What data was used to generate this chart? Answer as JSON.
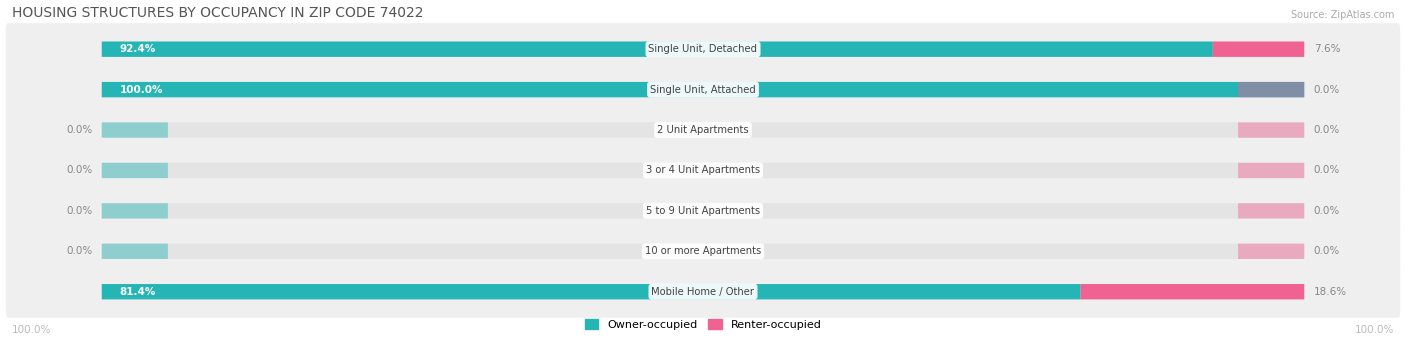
{
  "title": "HOUSING STRUCTURES BY OCCUPANCY IN ZIP CODE 74022",
  "source": "Source: ZipAtlas.com",
  "categories": [
    "Single Unit, Detached",
    "Single Unit, Attached",
    "2 Unit Apartments",
    "3 or 4 Unit Apartments",
    "5 to 9 Unit Apartments",
    "10 or more Apartments",
    "Mobile Home / Other"
  ],
  "owner_pct": [
    92.4,
    100.0,
    0.0,
    0.0,
    0.0,
    0.0,
    81.4
  ],
  "renter_pct": [
    7.6,
    0.0,
    0.0,
    0.0,
    0.0,
    0.0,
    18.6
  ],
  "owner_label": [
    "92.4%",
    "100.0%",
    "0.0%",
    "0.0%",
    "0.0%",
    "0.0%",
    "81.4%"
  ],
  "renter_label": [
    "7.6%",
    "0.0%",
    "0.0%",
    "0.0%",
    "0.0%",
    "0.0%",
    "18.6%"
  ],
  "owner_color": "#26b5b5",
  "renter_color": "#f06292",
  "bar_bg_color": "#e4e4e4",
  "row_bg_color": "#efefef",
  "title_color": "#555555",
  "source_color": "#aaaaaa",
  "axis_label_color": "#bbbbbb",
  "background_color": "#ffffff",
  "figsize": [
    14.06,
    3.41
  ],
  "dpi": 100
}
